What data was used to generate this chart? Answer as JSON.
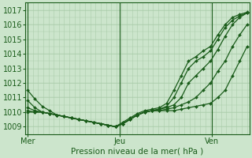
{
  "title": "",
  "xlabel": "Pression niveau de la mer( hPa )",
  "background_color": "#cce5cc",
  "plot_bg_color": "#cce5cc",
  "grid_color_v": "#aaccaa",
  "grid_color_h": "#aaccaa",
  "line_color": "#1a5c1a",
  "ylim": [
    1008.5,
    1017.5
  ],
  "yticks": [
    1009,
    1010,
    1011,
    1012,
    1013,
    1014,
    1015,
    1016,
    1017
  ],
  "xtick_labels": [
    "Mer",
    "Jeu",
    "Ven"
  ],
  "xtick_positions": [
    0.0,
    0.42,
    0.84
  ],
  "vline_positions": [
    0.0,
    0.42,
    0.84
  ],
  "series": [
    [
      1011.5,
      1010.9,
      1010.4,
      1010.1,
      1009.8,
      1009.7,
      1009.6,
      1009.5,
      1009.4,
      1009.3,
      1009.2,
      1009.1,
      1009.0,
      1009.2,
      1009.5,
      1009.8,
      1010.0,
      1010.1,
      1010.1,
      1010.1,
      1010.1,
      1010.2,
      1010.3,
      1010.4,
      1010.5,
      1010.6,
      1011.0,
      1011.5,
      1012.5,
      1013.5,
      1014.5
    ],
    [
      1010.8,
      1010.3,
      1010.0,
      1009.9,
      1009.8,
      1009.7,
      1009.6,
      1009.5,
      1009.4,
      1009.3,
      1009.2,
      1009.1,
      1009.0,
      1009.2,
      1009.5,
      1009.8,
      1010.0,
      1010.1,
      1010.1,
      1010.2,
      1010.3,
      1010.5,
      1010.7,
      1011.0,
      1011.5,
      1012.0,
      1012.8,
      1013.5,
      1014.5,
      1015.3,
      1016.0
    ],
    [
      1010.3,
      1010.1,
      1010.0,
      1009.9,
      1009.8,
      1009.7,
      1009.6,
      1009.5,
      1009.4,
      1009.3,
      1009.2,
      1009.1,
      1009.0,
      1009.2,
      1009.5,
      1009.8,
      1010.0,
      1010.1,
      1010.2,
      1010.3,
      1010.5,
      1011.0,
      1012.0,
      1012.5,
      1013.0,
      1013.5,
      1014.3,
      1015.2,
      1016.0,
      1016.5,
      1016.8
    ],
    [
      1010.1,
      1010.0,
      1010.0,
      1009.9,
      1009.8,
      1009.7,
      1009.6,
      1009.5,
      1009.4,
      1009.3,
      1009.2,
      1009.1,
      1009.0,
      1009.2,
      1009.5,
      1009.8,
      1010.0,
      1010.1,
      1010.2,
      1010.4,
      1011.0,
      1012.0,
      1013.0,
      1013.5,
      1013.8,
      1014.2,
      1015.0,
      1015.8,
      1016.3,
      1016.6,
      1016.8
    ],
    [
      1010.0,
      1010.0,
      1010.0,
      1009.9,
      1009.8,
      1009.7,
      1009.6,
      1009.5,
      1009.4,
      1009.3,
      1009.2,
      1009.1,
      1009.0,
      1009.3,
      1009.6,
      1009.9,
      1010.1,
      1010.2,
      1010.3,
      1010.6,
      1011.5,
      1012.5,
      1013.5,
      1013.8,
      1014.2,
      1014.5,
      1015.3,
      1016.0,
      1016.5,
      1016.7,
      1016.85
    ]
  ],
  "marker": "D",
  "marker_size": 2,
  "linewidth": 0.9,
  "n_points": 31,
  "n_vgrid": 42,
  "n_hgrid": 9
}
